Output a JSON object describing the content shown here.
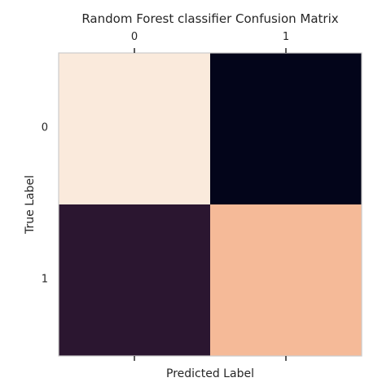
{
  "chart_data": {
    "type": "heatmap",
    "title": "Random Forest classifier Confusion Matrix",
    "xlabel": "Predicted Label",
    "ylabel": "True Label",
    "x_categories": [
      "0",
      "1"
    ],
    "y_categories": [
      "0",
      "1"
    ],
    "x_tick_position": "top",
    "values": [
      [
        1.0,
        0.0
      ],
      [
        0.1,
        0.8
      ]
    ],
    "cell_colors": [
      [
        "#faeadc",
        "#03051a"
      ],
      [
        "#2b1630",
        "#f5ba98"
      ]
    ],
    "grid": false
  }
}
